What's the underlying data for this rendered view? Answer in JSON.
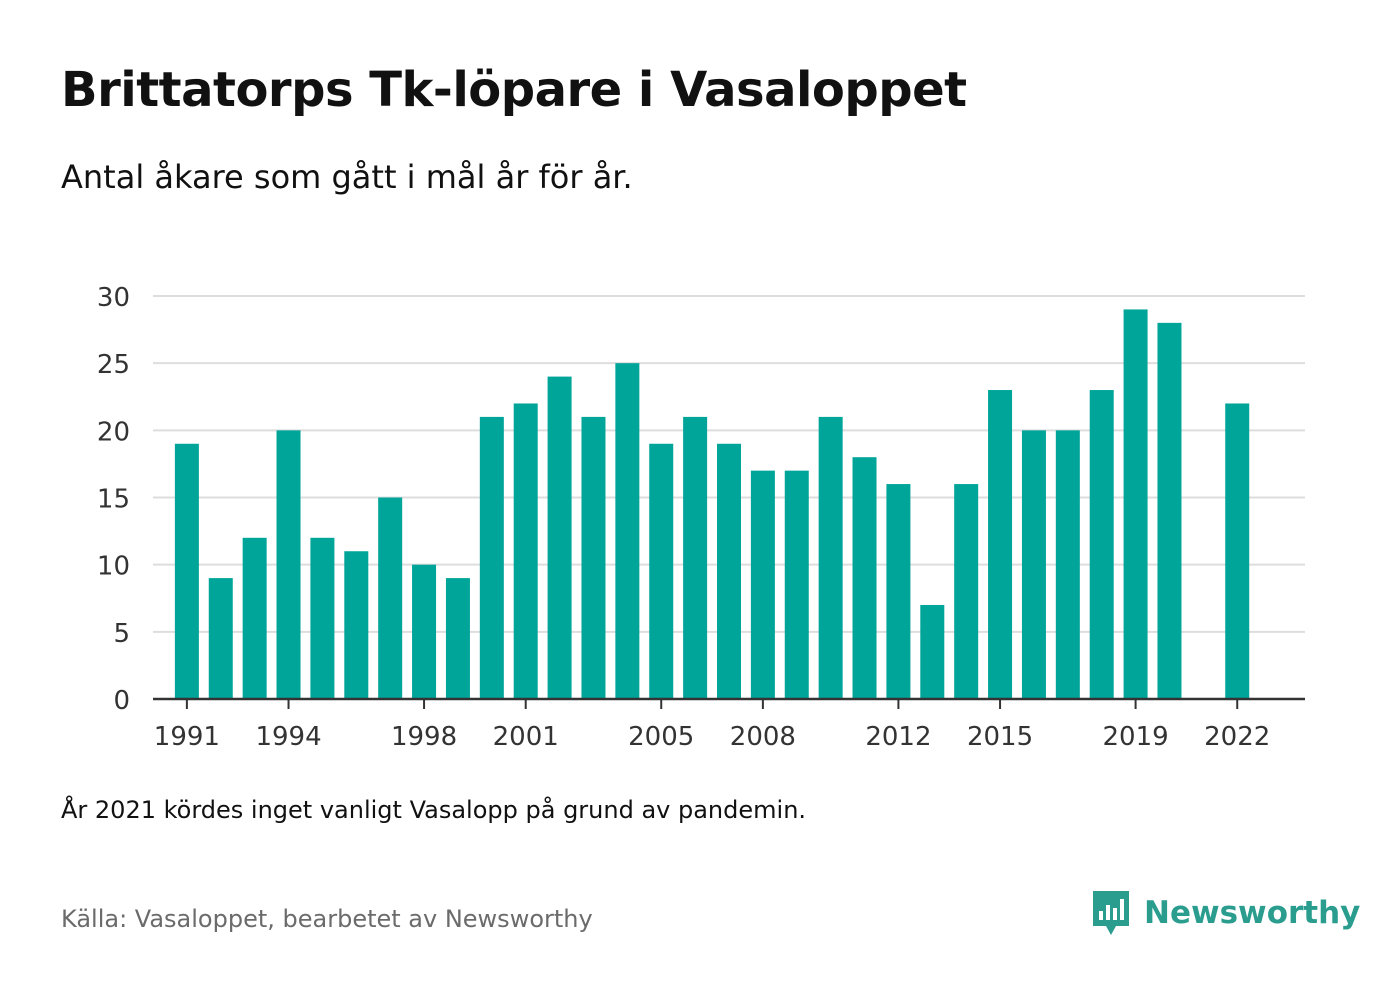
{
  "title": "Brittatorps Tk-löpare i Vasaloppet",
  "subtitle": "Antal åkare som gått i mål år för år.",
  "note": "År 2021 kördes inget vanligt Vasalopp på grund av pandemin.",
  "source": "Källa: Vasaloppet, bearbetet av Newsworthy",
  "brand": {
    "name": "Newsworthy",
    "icon": "newsworthy-logo-icon"
  },
  "colors": {
    "bar": "#00a59a",
    "brand": "#2a9d8f",
    "grid": "#dddddd",
    "axis": "#333333"
  },
  "chart_data": {
    "type": "bar",
    "x": [
      1991,
      1992,
      1993,
      1994,
      1995,
      1996,
      1997,
      1998,
      1999,
      2000,
      2001,
      2002,
      2003,
      2004,
      2005,
      2006,
      2007,
      2008,
      2009,
      2010,
      2011,
      2012,
      2013,
      2014,
      2015,
      2016,
      2017,
      2018,
      2019,
      2020,
      2022
    ],
    "values": [
      19,
      9,
      12,
      20,
      12,
      11,
      15,
      10,
      9,
      21,
      22,
      24,
      21,
      25,
      19,
      21,
      19,
      17,
      17,
      21,
      18,
      16,
      7,
      16,
      23,
      20,
      20,
      23,
      29,
      28,
      22
    ],
    "xlim": [
      1990,
      2024
    ],
    "ylim": [
      0,
      30
    ],
    "yticks": [
      0,
      5,
      10,
      15,
      20,
      25,
      30
    ],
    "xticks": [
      1991,
      1994,
      1998,
      2001,
      2005,
      2008,
      2012,
      2015,
      2019,
      2022
    ],
    "xlabel": "",
    "ylabel": "",
    "grid": true
  }
}
